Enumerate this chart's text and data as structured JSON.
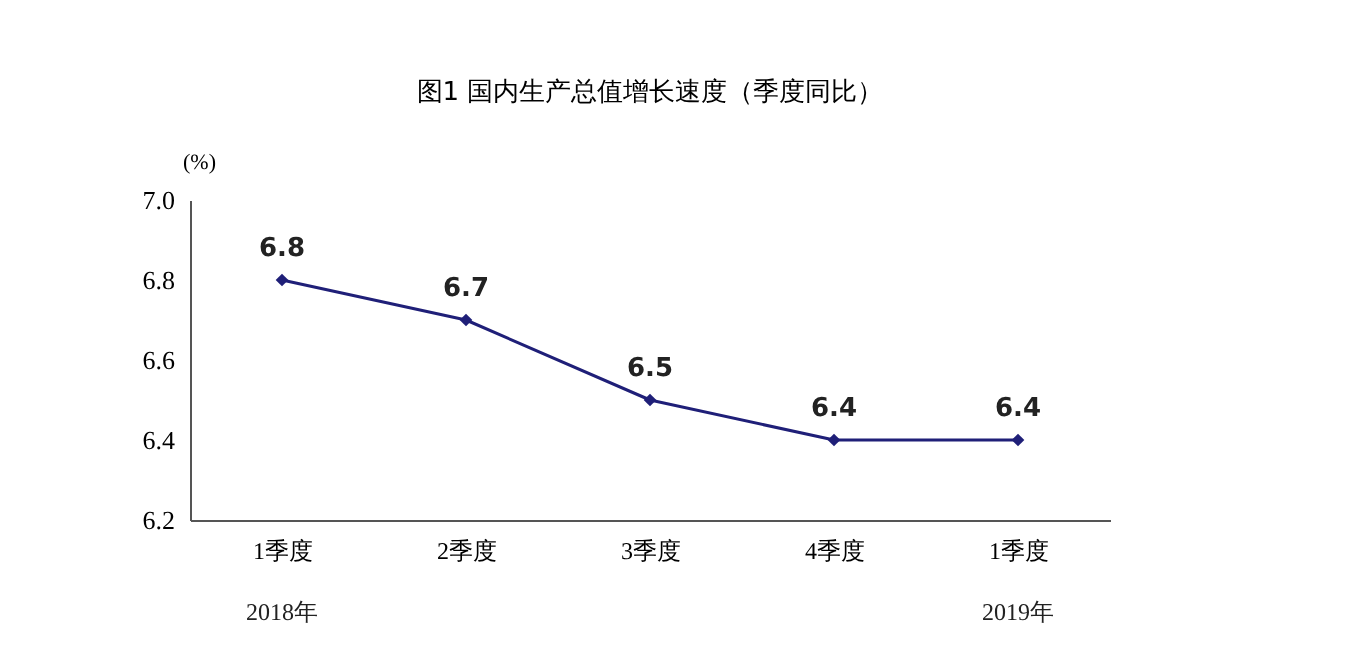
{
  "chart_data": {
    "type": "line",
    "title": "图1  国内生产总值增长速度（季度同比）",
    "ylabel": "(%)",
    "categories": [
      "1季度",
      "2季度",
      "3季度",
      "4季度",
      "1季度"
    ],
    "series": [
      {
        "color": "#1f1f78",
        "values": [
          6.8,
          6.7,
          6.5,
          6.4,
          6.4
        ]
      }
    ],
    "ylim": [
      6.2,
      7.0
    ],
    "yticks": [
      6.2,
      6.4,
      6.6,
      6.8,
      {
        "value": 7.0,
        "label": "7.0"
      }
    ],
    "marker": "diamond",
    "line_style": "solid",
    "grid": false,
    "data_labels": true,
    "annotations": [
      "2018年",
      "2019年"
    ]
  }
}
